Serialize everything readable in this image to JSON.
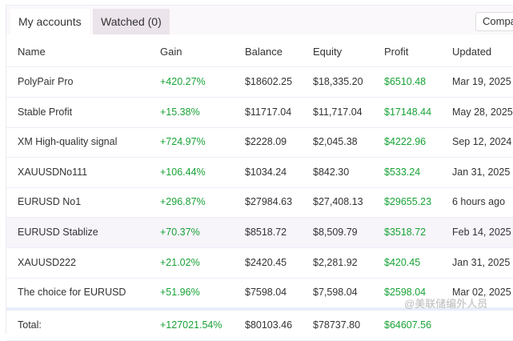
{
  "tabs": [
    {
      "label": "My accounts"
    },
    {
      "label": "Watched (0)"
    }
  ],
  "compare_label": "Compa",
  "columns": [
    "Name",
    "Gain",
    "Balance",
    "Equity",
    "Profit",
    "Updated"
  ],
  "rows": [
    [
      "PolyPair Pro",
      "+420.27%",
      "$18602.25",
      "$18,335.20",
      "$6510.48",
      "Mar 19, 2025"
    ],
    [
      "Stable Profit",
      "+15.38%",
      "$11717.04",
      "$11,717.04",
      "$17148.44",
      "May 28, 2025"
    ],
    [
      "XM High-quality signal",
      "+724.97%",
      "$2228.09",
      "$2,045.38",
      "$4222.96",
      "Sep 12, 2024"
    ],
    [
      "XAUUSDNo111",
      "+106.44%",
      "$1034.24",
      "$842.30",
      "$533.24",
      "Jan 31, 2025"
    ],
    [
      "EURUSD No1",
      "+296.87%",
      "$27984.63",
      "$27,408.13",
      "$29655.23",
      "6 hours ago"
    ],
    [
      "EURUSD Stablize",
      "+70.37%",
      "$8518.72",
      "$8,509.79",
      "$3518.72",
      "Feb 14, 2025"
    ],
    [
      "XAUUSD222",
      "+21.02%",
      "$2420.45",
      "$2,281.92",
      "$420.45",
      "Jan 31, 2025"
    ],
    [
      "The choice for EURUSD",
      "+51.96%",
      "$7598.04",
      "$7,598.04",
      "$2598.04",
      "Mar 02, 2025"
    ]
  ],
  "total": [
    "Total:",
    "+127021.54%",
    "$80103.46",
    "$78737.80",
    "$64607.56"
  ],
  "watermark": "@美联储编外人员",
  "colors": {
    "positive": "#19a337",
    "highlight": "#f7f4fa"
  }
}
